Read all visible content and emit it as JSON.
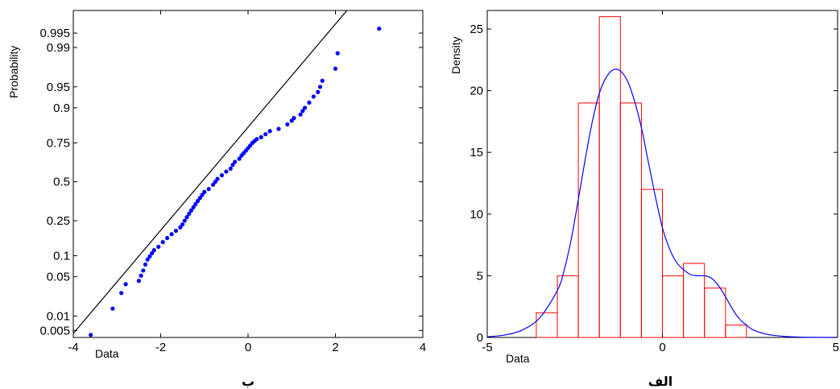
{
  "chart_data": [
    {
      "type": "scatter",
      "panel_label": "ب",
      "xlabel": "Data",
      "ylabel": "Probability",
      "xlim": [
        -4,
        4
      ],
      "x_ticks": [
        -4,
        -2,
        0,
        2,
        4
      ],
      "y_scale": "normal-probability",
      "y_ticks": [
        0.005,
        0.01,
        0.05,
        0.1,
        0.25,
        0.5,
        0.75,
        0.9,
        0.95,
        0.99,
        0.995
      ],
      "y_tick_labels": [
        "0.005",
        "0.01",
        "0.05",
        "0.1",
        "0.25",
        "0.5",
        "0.75",
        "0.9",
        "0.95",
        "0.99",
        "0.995"
      ],
      "point_color": "#0000ff",
      "line_color": "#000000",
      "reference_line": [
        [
          -4,
          0.0043
        ],
        [
          2.4,
          0.999
        ]
      ],
      "points": [
        [
          -3.6,
          0.004
        ],
        [
          -3.1,
          0.014
        ],
        [
          -2.9,
          0.027
        ],
        [
          -2.8,
          0.038
        ],
        [
          -2.5,
          0.043
        ],
        [
          -2.45,
          0.052
        ],
        [
          -2.4,
          0.062
        ],
        [
          -2.35,
          0.076
        ],
        [
          -2.3,
          0.089
        ],
        [
          -2.25,
          0.098
        ],
        [
          -2.2,
          0.108
        ],
        [
          -2.15,
          0.118
        ],
        [
          -2.05,
          0.13
        ],
        [
          -1.95,
          0.148
        ],
        [
          -1.85,
          0.165
        ],
        [
          -1.75,
          0.182
        ],
        [
          -1.65,
          0.198
        ],
        [
          -1.55,
          0.215
        ],
        [
          -1.5,
          0.23
        ],
        [
          -1.45,
          0.25
        ],
        [
          -1.4,
          0.27
        ],
        [
          -1.35,
          0.29
        ],
        [
          -1.3,
          0.31
        ],
        [
          -1.25,
          0.33
        ],
        [
          -1.2,
          0.35
        ],
        [
          -1.15,
          0.37
        ],
        [
          -1.1,
          0.39
        ],
        [
          -1.05,
          0.41
        ],
        [
          -1.0,
          0.43
        ],
        [
          -0.9,
          0.45
        ],
        [
          -0.8,
          0.48
        ],
        [
          -0.75,
          0.5
        ],
        [
          -0.7,
          0.52
        ],
        [
          -0.6,
          0.545
        ],
        [
          -0.5,
          0.57
        ],
        [
          -0.4,
          0.59
        ],
        [
          -0.35,
          0.615
        ],
        [
          -0.3,
          0.635
        ],
        [
          -0.2,
          0.655
        ],
        [
          -0.15,
          0.675
        ],
        [
          -0.1,
          0.69
        ],
        [
          -0.05,
          0.705
        ],
        [
          0.0,
          0.72
        ],
        [
          0.05,
          0.735
        ],
        [
          0.1,
          0.75
        ],
        [
          0.15,
          0.76
        ],
        [
          0.2,
          0.77
        ],
        [
          0.3,
          0.78
        ],
        [
          0.4,
          0.795
        ],
        [
          0.5,
          0.81
        ],
        [
          0.7,
          0.82
        ],
        [
          0.9,
          0.84
        ],
        [
          1.0,
          0.855
        ],
        [
          1.05,
          0.865
        ],
        [
          1.2,
          0.878
        ],
        [
          1.25,
          0.89
        ],
        [
          1.3,
          0.9
        ],
        [
          1.4,
          0.915
        ],
        [
          1.5,
          0.93
        ],
        [
          1.6,
          0.94
        ],
        [
          1.65,
          0.95
        ],
        [
          1.7,
          0.96
        ],
        [
          2.0,
          0.975
        ],
        [
          2.05,
          0.987
        ],
        [
          3.0,
          0.996
        ]
      ]
    },
    {
      "type": "histogram",
      "panel_label": "الف",
      "xlabel": "Data",
      "ylabel": "Density",
      "xlim": [
        -5,
        5
      ],
      "ylim": [
        0,
        26.5
      ],
      "x_ticks": [
        -5,
        0,
        5
      ],
      "y_ticks": [
        0,
        5,
        10,
        15,
        20,
        25
      ],
      "bar_color": "#ff0000",
      "curve_color": "#0000ff",
      "bins": [
        {
          "x0": -3.6,
          "x1": -3.0,
          "value": 2
        },
        {
          "x0": -3.0,
          "x1": -2.4,
          "value": 5
        },
        {
          "x0": -2.4,
          "x1": -1.8,
          "value": 19
        },
        {
          "x0": -1.8,
          "x1": -1.2,
          "value": 26
        },
        {
          "x0": -1.2,
          "x1": -0.6,
          "value": 19
        },
        {
          "x0": -0.6,
          "x1": 0.0,
          "value": 12
        },
        {
          "x0": 0.0,
          "x1": 0.6,
          "value": 5
        },
        {
          "x0": 0.6,
          "x1": 1.2,
          "value": 6
        },
        {
          "x0": 1.2,
          "x1": 1.8,
          "value": 4
        },
        {
          "x0": 1.8,
          "x1": 2.4,
          "value": 1
        }
      ],
      "density_curve": [
        [
          -5,
          0.05
        ],
        [
          -4.5,
          0.2
        ],
        [
          -4,
          0.6
        ],
        [
          -3.5,
          1.6
        ],
        [
          -3,
          3.8
        ],
        [
          -2.8,
          5.5
        ],
        [
          -2.6,
          8
        ],
        [
          -2.4,
          11.2
        ],
        [
          -2.2,
          14.5
        ],
        [
          -2,
          17.5
        ],
        [
          -1.8,
          19.8
        ],
        [
          -1.6,
          21.1
        ],
        [
          -1.4,
          21.7
        ],
        [
          -1.2,
          21.6
        ],
        [
          -1.0,
          20.8
        ],
        [
          -0.8,
          19.2
        ],
        [
          -0.6,
          17.0
        ],
        [
          -0.4,
          14.2
        ],
        [
          -0.2,
          11.4
        ],
        [
          0,
          8.9
        ],
        [
          0.2,
          7.2
        ],
        [
          0.4,
          6.1
        ],
        [
          0.6,
          5.5
        ],
        [
          0.8,
          5.1
        ],
        [
          1.0,
          5.0
        ],
        [
          1.2,
          5.0
        ],
        [
          1.4,
          4.8
        ],
        [
          1.6,
          4.2
        ],
        [
          1.8,
          3.3
        ],
        [
          2.0,
          2.3
        ],
        [
          2.2,
          1.5
        ],
        [
          2.4,
          1.0
        ],
        [
          2.6,
          0.6
        ],
        [
          3.0,
          0.25
        ],
        [
          3.5,
          0.08
        ],
        [
          4,
          0.02
        ],
        [
          5,
          0.0
        ]
      ]
    }
  ]
}
